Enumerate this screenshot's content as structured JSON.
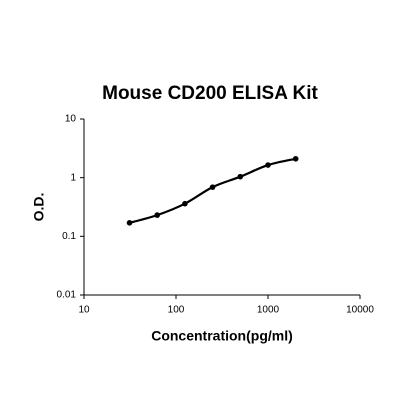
{
  "chart_data": {
    "type": "line",
    "title": "Mouse CD200 ELISA Kit",
    "x_label": "Concentration(pg/ml)",
    "y_label": "O.D.",
    "x": [
      31.25,
      62.5,
      125,
      250,
      500,
      1000,
      2000
    ],
    "series": [
      {
        "name": "O.D.",
        "color": "#000000",
        "values": [
          0.17,
          0.23,
          0.36,
          0.69,
          1.04,
          1.64,
          2.1
        ]
      }
    ],
    "xlim": [
      10,
      10000
    ],
    "ylim": [
      0.01,
      10
    ],
    "xticks": [
      10,
      100,
      1000,
      10000
    ],
    "yticks": [
      0.01,
      0.1,
      1,
      10
    ],
    "x_log": true,
    "y_log": true
  }
}
